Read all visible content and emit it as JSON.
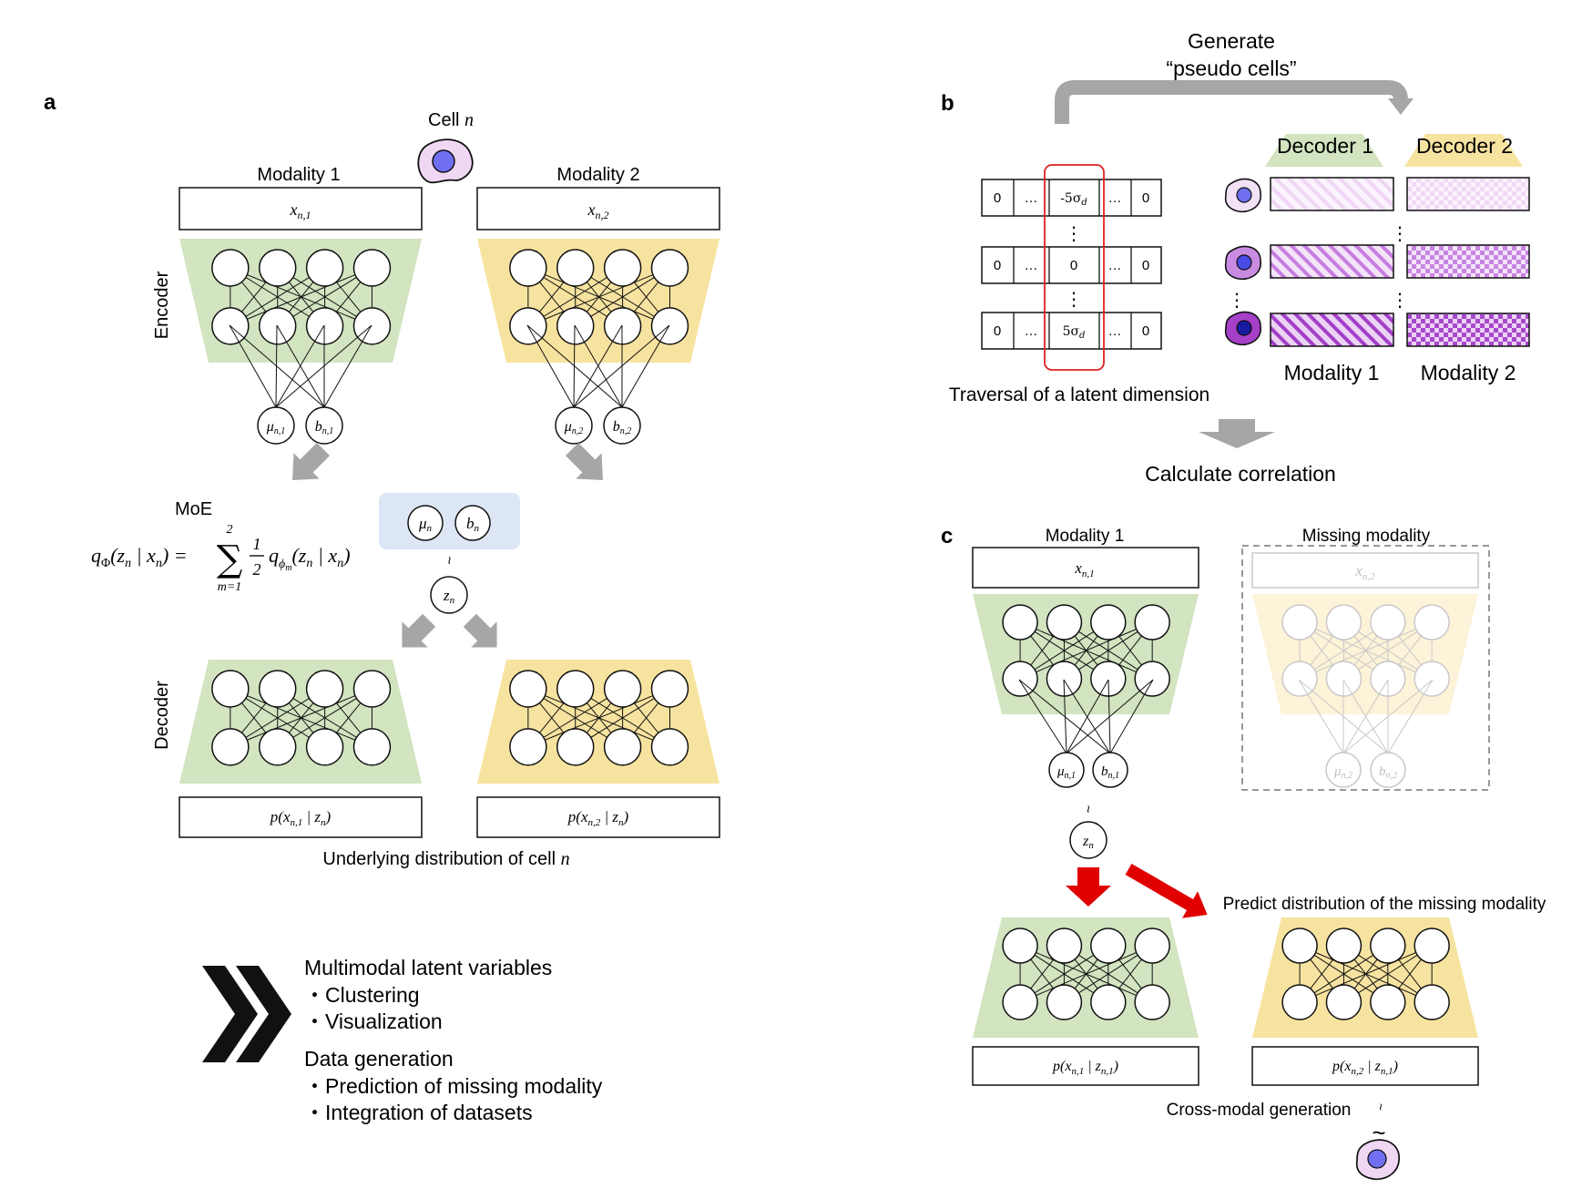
{
  "panel_a": {
    "label": "a",
    "cell_title": "Cell",
    "cell_var": "n",
    "modality1": "Modality 1",
    "modality2": "Modality 2",
    "x1_base": "x",
    "x1_sub": "n,1",
    "x2_base": "x",
    "x2_sub": "n,2",
    "encoder": "Encoder",
    "decoder": "Decoder",
    "mu1_base": "μ",
    "mu1_sub": "n,1",
    "b1_base": "b",
    "b1_sub": "n,1",
    "mu2_base": "μ",
    "mu2_sub": "n,2",
    "b2_base": "b",
    "b2_sub": "n,2",
    "moe": "MoE",
    "moe_lhs": "q",
    "moe_lhs_sub": "Φ",
    "moe_lhs_args": "(z",
    "moe_lhs_args_sub": "n",
    "moe_lhs_cond": " | x",
    "moe_lhs_cond_sub": "n",
    "moe_lhs_close": ") =",
    "moe_sum": "∑",
    "moe_sum_top": "2",
    "moe_sum_bottom": "m=1",
    "moe_frac_num": "1",
    "moe_frac_den": "2",
    "moe_rhs": "q",
    "moe_rhs_sub": "ϕ",
    "moe_rhs_subsub": "m",
    "moe_rhs_args": "(z",
    "moe_rhs_args_sub": "n",
    "moe_rhs_cond": " | x",
    "moe_rhs_cond_sub": "n",
    "moe_rhs_close": ")",
    "mu_base": "μ",
    "mu_sub": "n",
    "b_base": "b",
    "b_sub": "n",
    "tilde": "~",
    "z_base": "z",
    "z_sub": "n",
    "p1": "p(x",
    "p1_sub": "n,1",
    "p1_cond": " | z",
    "p1_cond_sub": "n",
    "p1_close": ")",
    "p2": "p(x",
    "p2_sub": "n,2",
    "p2_cond": " | z",
    "p2_cond_sub": "n",
    "p2_close": ")",
    "underlying_text": "Underlying distribution of cell",
    "underlying_var": "n"
  },
  "summary": {
    "heading1": "Multimodal latent variables",
    "item1": "・Clustering",
    "item2": "・Visualization",
    "heading2": "Data generation",
    "item3": "・Prediction of missing modality",
    "item4": "・Integration of datasets"
  },
  "panel_b": {
    "label": "b",
    "generate_line1": "Generate",
    "generate_line2": "“pseudo cells”",
    "decoder1": "Decoder 1",
    "decoder2": "Decoder 2",
    "vec_zero": "0",
    "vec_dots": "…",
    "val_neg": "-5σ",
    "val_neg_sub": "d",
    "val_zero": "0",
    "val_pos": "5σ",
    "val_pos_sub": "d",
    "vdots": "⋮",
    "traversal": "Traversal of a latent dimension",
    "modality1": "Modality 1",
    "modality2": "Modality 2",
    "calculate": "Calculate correlation"
  },
  "panel_c": {
    "label": "c",
    "modality1": "Modality 1",
    "missing": "Missing modality",
    "x1_base": "x",
    "x1_sub": "n,1",
    "x2_base": "x",
    "x2_sub": "n,2",
    "mu1_base": "μ",
    "mu1_sub": "n,1",
    "b1_base": "b",
    "b1_sub": "n,1",
    "mu2_base": "μ",
    "mu2_sub": "n,2",
    "b2_base": "b",
    "b2_sub": "n,2",
    "tilde": "~",
    "z_base": "z",
    "z_sub": "n",
    "predict": "Predict distribution of the missing modality",
    "p1": "p(x",
    "p1_sub": "n,1",
    "p1_cond": " | z",
    "p1_cond_sub": "n,1",
    "p1_close": ")",
    "p2": "p(x",
    "p2_sub": "n,2",
    "p2_cond": " | z",
    "p2_cond_sub": "n,1",
    "p2_close": ")",
    "crossmodal": "Cross-modal generation"
  },
  "colors": {
    "green": "#d2e4c0",
    "yellow": "#f7e3a0",
    "blue_box": "#dde6f5",
    "gray_arrow": "#a6a6a6",
    "red_arrow": "#e00000",
    "red_outline": "#e02020",
    "purple": "#b04fd0",
    "cell_fill": "#f0d8f4",
    "nucleus": "#6f6ff0"
  }
}
